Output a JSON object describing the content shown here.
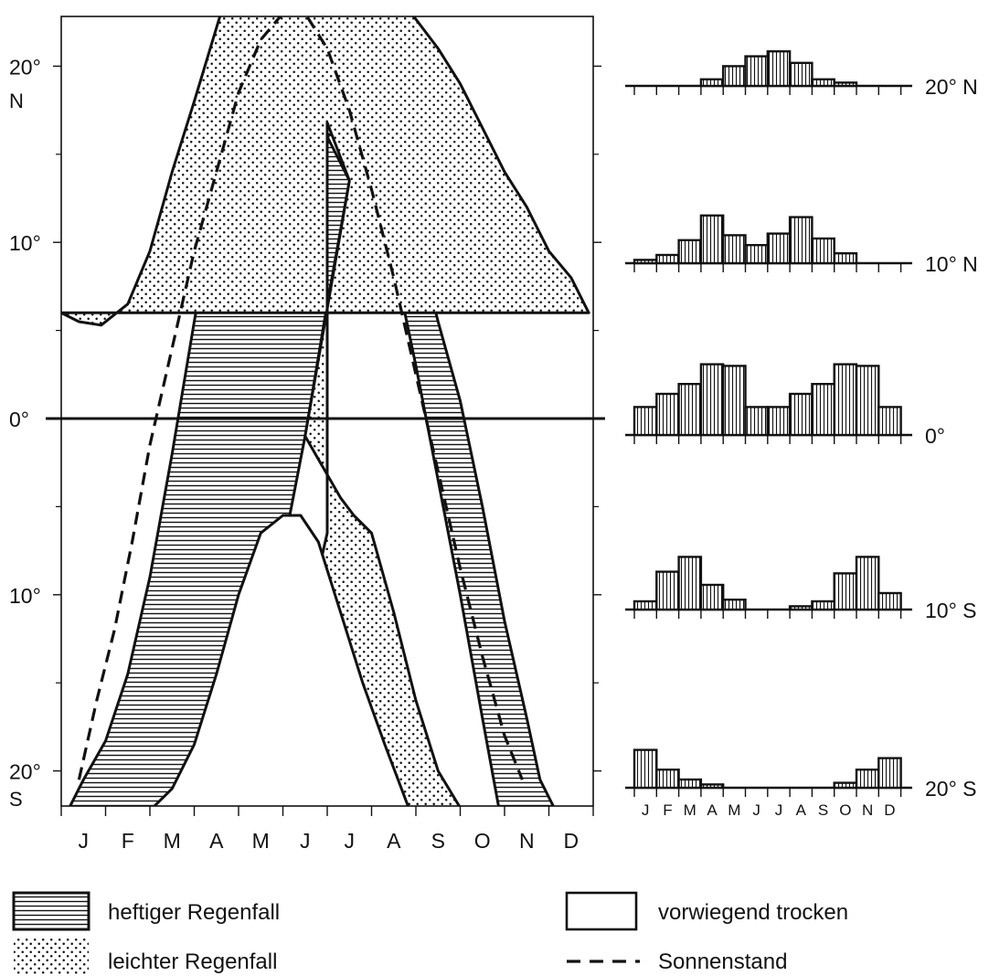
{
  "chart_data": [
    {
      "type": "area",
      "xlabel": "",
      "ylabel": "",
      "x_tick_labels": [
        "J",
        "F",
        "M",
        "A",
        "M",
        "J",
        "J",
        "A",
        "S",
        "O",
        "N",
        "D"
      ],
      "y_tick_labels": [
        {
          "value": 20,
          "label": "20°"
        },
        {
          "value": 10,
          "label": "10°"
        },
        {
          "value": 0,
          "label": "0°"
        },
        {
          "value": -10,
          "label": "10°"
        },
        {
          "value": -20,
          "label": "20°"
        }
      ],
      "hemisphere_labels": {
        "north": "N",
        "south": "S"
      },
      "x_unit": "month (0 = start of January, 12 = end of December)",
      "y_unit": "latitude in degrees (positive = N, negative = S)",
      "xlim": [
        0,
        12
      ],
      "ylim": [
        -22.5,
        23
      ],
      "regions": [
        {
          "name": "heftiger Regenfall",
          "pattern": "horizontal-hatch",
          "outer_boundary": [
            [
              0.1,
              -22.5
            ],
            [
              0.5,
              -20.5
            ],
            [
              1.0,
              -18.3
            ],
            [
              1.5,
              -14.5
            ],
            [
              2.0,
              -9.0
            ],
            [
              2.5,
              -2.0
            ],
            [
              3.0,
              5.5
            ],
            [
              3.5,
              12.5
            ],
            [
              4.0,
              18.0
            ],
            [
              4.5,
              21.5
            ],
            [
              5.1,
              23.0
            ],
            [
              6.1,
              23.0
            ],
            [
              6.5,
              22.0
            ],
            [
              7.0,
              19.5
            ],
            [
              7.5,
              15.5
            ],
            [
              8.0,
              10.5
            ],
            [
              8.5,
              5.5
            ],
            [
              9.0,
              1.0
            ],
            [
              9.5,
              -5.0
            ],
            [
              10.0,
              -11.5
            ],
            [
              10.5,
              -17.0
            ],
            [
              10.8,
              -20.5
            ],
            [
              11.2,
              -22.5
            ]
          ],
          "inner_boundary": [
            [
              3.3,
              -22.5
            ],
            [
              4.0,
              -20.5
            ],
            [
              4.5,
              -14.5
            ],
            [
              5.0,
              -7.5
            ],
            [
              5.5,
              -1.0
            ],
            [
              6.0,
              6.5
            ],
            [
              6.5,
              13.5
            ],
            [
              6.0,
              16.0
            ],
            [
              6.5,
              16.8
            ],
            [
              7.0,
              14.5
            ],
            [
              7.5,
              9.0
            ],
            [
              8.0,
              3.0
            ],
            [
              8.5,
              -3.5
            ],
            [
              9.0,
              -10.0
            ],
            [
              9.5,
              -17.0
            ],
            [
              9.9,
              -22.5
            ]
          ]
        },
        {
          "name": "leichter Regenfall",
          "pattern": "dots",
          "outer_boundary": [
            [
              0.0,
              6.0
            ],
            [
              0.4,
              5.5
            ],
            [
              0.9,
              5.3
            ],
            [
              1.5,
              6.5
            ],
            [
              2.0,
              9.5
            ],
            [
              2.5,
              14.0
            ],
            [
              3.0,
              18.0
            ],
            [
              3.6,
              23.0
            ],
            [
              7.9,
              23.0
            ],
            [
              8.5,
              21.0
            ],
            [
              9.0,
              19.0
            ],
            [
              9.5,
              16.5
            ],
            [
              10.0,
              14.0
            ],
            [
              10.5,
              12.0
            ],
            [
              11.0,
              9.5
            ],
            [
              11.5,
              8.0
            ],
            [
              11.9,
              6.0
            ]
          ],
          "inner_boundary": [
            [
              6.0,
              16.8
            ],
            [
              6.5,
              13.5
            ],
            [
              5.5,
              -1.0
            ],
            [
              6.3,
              -4.5
            ],
            [
              6.6,
              -5.5
            ],
            [
              7.0,
              -6.5
            ],
            [
              7.5,
              -11.0
            ],
            [
              8.0,
              -16.0
            ],
            [
              8.5,
              -20.0
            ],
            [
              9.1,
              -22.5
            ],
            [
              4.0,
              -22.5
            ],
            [
              4.5,
              -21.5
            ],
            [
              5.0,
              -17.5
            ],
            [
              5.5,
              -12.0
            ],
            [
              6.0,
              -6.5
            ]
          ]
        },
        {
          "name": "vorwiegend trocken",
          "pattern": "none",
          "outer_boundary": [
            [
              1.9,
              -22.5
            ],
            [
              2.5,
              -21.0
            ],
            [
              3.0,
              -18.5
            ],
            [
              3.5,
              -14.5
            ],
            [
              4.0,
              -10.0
            ],
            [
              4.5,
              -6.5
            ],
            [
              5.0,
              -5.5
            ],
            [
              5.4,
              -5.5
            ],
            [
              5.8,
              -7.0
            ],
            [
              6.3,
              -11.0
            ],
            [
              6.8,
              -15.0
            ],
            [
              7.3,
              -18.5
            ],
            [
              7.9,
              -22.5
            ]
          ],
          "inner_boundary": []
        }
      ],
      "series": [
        {
          "name": "Sonnenstand",
          "style": "dashed",
          "x": [
            0.4,
            0.8,
            1.2,
            1.6,
            2.0,
            2.5,
            3.0,
            3.5,
            4.0,
            4.5,
            5.0,
            5.5,
            6.0,
            6.5,
            7.0,
            7.5,
            8.0,
            8.5,
            9.0,
            9.5,
            10.0,
            10.4
          ],
          "y": [
            -20.5,
            -16.0,
            -12.0,
            -7.0,
            -1.5,
            4.0,
            9.5,
            14.0,
            18.5,
            21.5,
            23.0,
            23.0,
            21.0,
            17.5,
            13.0,
            8.0,
            2.5,
            -3.0,
            -8.5,
            -13.5,
            -18.0,
            -20.5
          ]
        }
      ],
      "legend": [
        {
          "label": "heftiger Regenfall",
          "swatch": "horizontal-hatch"
        },
        {
          "label": "leichter Regenfall",
          "swatch": "dots"
        },
        {
          "label": "vorwiegend trocken",
          "swatch": "empty-box"
        },
        {
          "label": "Sonnenstand",
          "swatch": "dashed-line"
        }
      ],
      "legend_position": "bottom",
      "grid": false
    },
    {
      "type": "bar",
      "layout": "five stacked small-multiple histograms sharing one month axis",
      "categories": [
        "J",
        "F",
        "M",
        "A",
        "M",
        "J",
        "J",
        "A",
        "S",
        "O",
        "N",
        "D"
      ],
      "value_unit": "relative rainfall (0-10, no printed scale)",
      "series": [
        {
          "name": "20° N",
          "values": [
            0,
            0,
            0,
            0.8,
            2.4,
            3.6,
            4.2,
            2.8,
            0.8,
            0.4,
            0,
            0
          ]
        },
        {
          "name": "10° N",
          "values": [
            0.4,
            1.0,
            2.8,
            5.8,
            3.4,
            2.2,
            3.6,
            5.6,
            3.0,
            1.2,
            0,
            0
          ]
        },
        {
          "name": "0°",
          "values": [
            3.4,
            5.0,
            6.2,
            8.6,
            8.4,
            3.4,
            3.4,
            5.0,
            6.2,
            8.6,
            8.4,
            3.4
          ]
        },
        {
          "name": "10° S",
          "values": [
            1.0,
            4.6,
            6.4,
            3.0,
            1.2,
            0,
            0,
            0.4,
            1.0,
            4.4,
            6.4,
            2.0
          ]
        },
        {
          "name": "20° S",
          "values": [
            4.6,
            2.2,
            1.0,
            0.4,
            0,
            0,
            0,
            0,
            0,
            0.6,
            2.2,
            3.6
          ]
        }
      ],
      "legend": "none",
      "grid": false
    }
  ]
}
